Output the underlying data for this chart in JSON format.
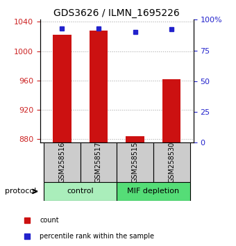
{
  "title": "GDS3626 / ILMN_1695226",
  "samples": [
    "GSM258516",
    "GSM258517",
    "GSM258515",
    "GSM258530"
  ],
  "red_values": [
    1022,
    1028,
    884,
    962
  ],
  "blue_values_pct": [
    93,
    93,
    90,
    92
  ],
  "ylim_left": [
    875,
    1043
  ],
  "ylim_right": [
    0,
    100
  ],
  "yticks_left": [
    880,
    920,
    960,
    1000,
    1040
  ],
  "yticks_right": [
    0,
    25,
    50,
    75,
    100
  ],
  "ytick_labels_right": [
    "0",
    "25",
    "50",
    "75",
    "100%"
  ],
  "bar_bottom": 875,
  "groups": [
    {
      "label": "control",
      "samples": [
        0,
        1
      ],
      "color": "#aaeebb"
    },
    {
      "label": "MIF depletion",
      "samples": [
        2,
        3
      ],
      "color": "#55dd77"
    }
  ],
  "bar_color": "#cc1111",
  "dot_color": "#2222cc",
  "tick_label_color_left": "#cc2222",
  "tick_label_color_right": "#2222cc",
  "grid_color": "#aaaaaa",
  "legend_red_label": "count",
  "legend_blue_label": "percentile rank within the sample",
  "bar_width": 0.5
}
